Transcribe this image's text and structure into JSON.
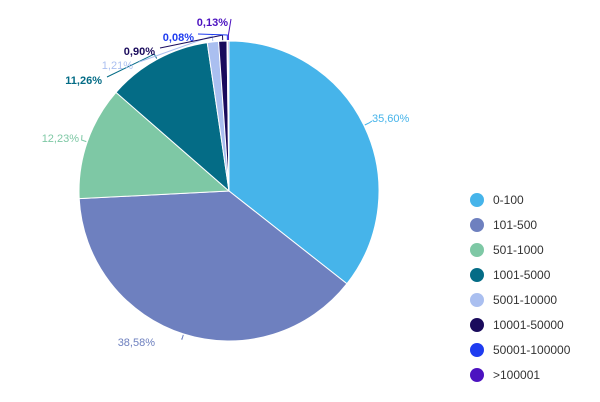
{
  "chart_data": {
    "type": "pie",
    "categories": [
      "0-100",
      "101-500",
      "501-1000",
      "1001-5000",
      "5001-10000",
      "10001-50000",
      "50001-100000",
      ">100001"
    ],
    "values": [
      35.6,
      38.58,
      12.23,
      11.26,
      1.21,
      0.9,
      0.08,
      0.13
    ],
    "data_labels": [
      "35,60%",
      "38,58%",
      "12,23%",
      "11,26%",
      "1,21%",
      "0,90%",
      "0,08%",
      "0,13%"
    ],
    "colors": [
      "#46b4ea",
      "#6e80bf",
      "#7ec8a5",
      "#046c86",
      "#aabff0",
      "#1a0b5c",
      "#1f3cf0",
      "#4c12c0"
    ],
    "legend_position": "right",
    "start_angle_deg": 0,
    "direction": "clockwise"
  }
}
